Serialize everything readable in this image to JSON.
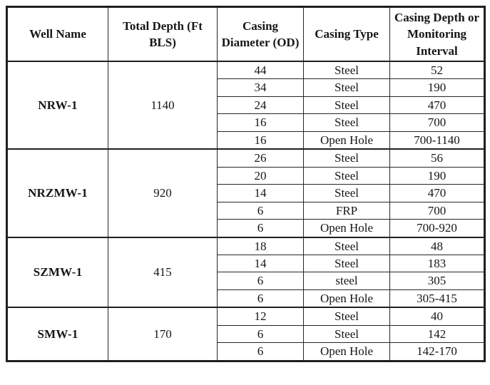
{
  "table": {
    "headers": [
      "Well Name",
      "Total Depth (Ft BLS)",
      "Casing Diameter (OD)",
      "Casing Type",
      "Casing Depth or Monitoring Interval"
    ],
    "groups": [
      {
        "well": "NRW-1",
        "total_depth": "1140",
        "rows": [
          [
            "44",
            "Steel",
            "52"
          ],
          [
            "34",
            "Steel",
            "190"
          ],
          [
            "24",
            "Steel",
            "470"
          ],
          [
            "16",
            "Steel",
            "700"
          ],
          [
            "16",
            "Open Hole",
            "700-1140"
          ]
        ]
      },
      {
        "well": "NRZMW-1",
        "total_depth": "920",
        "rows": [
          [
            "26",
            "Steel",
            "56"
          ],
          [
            "20",
            "Steel",
            "190"
          ],
          [
            "14",
            "Steel",
            "470"
          ],
          [
            "6",
            "FRP",
            "700"
          ],
          [
            "6",
            "Open Hole",
            "700-920"
          ]
        ]
      },
      {
        "well": "SZMW-1",
        "total_depth": "415",
        "rows": [
          [
            "18",
            "Steel",
            "48"
          ],
          [
            "14",
            "Steel",
            "183"
          ],
          [
            "6",
            "steel",
            "305"
          ],
          [
            "6",
            "Open Hole",
            "305-415"
          ]
        ]
      },
      {
        "well": "SMW-1",
        "total_depth": "170",
        "rows": [
          [
            "12",
            "Steel",
            "40"
          ],
          [
            "6",
            "Steel",
            "142"
          ],
          [
            "6",
            "Open Hole",
            "142-170"
          ]
        ]
      }
    ]
  },
  "colors": {
    "border": "#1f1f1f",
    "text": "#161616",
    "background": "#ffffff"
  }
}
